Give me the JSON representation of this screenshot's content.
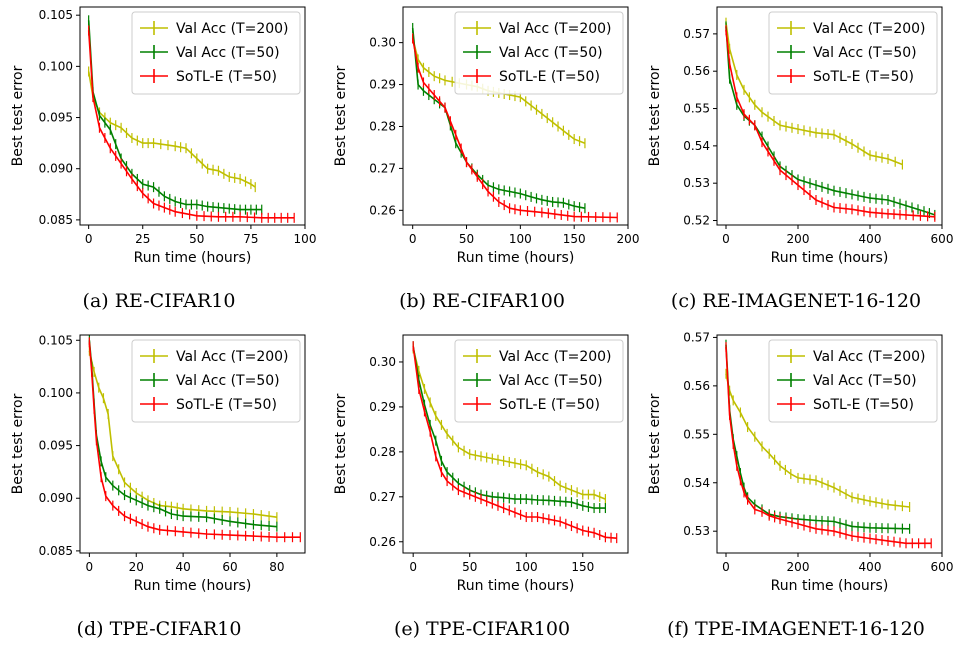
{
  "series_names": [
    "Val Acc (T=200)",
    "Val Acc (T=50)",
    "SoTL-E (T=50)"
  ],
  "series_colors": [
    "#bfbf00",
    "#008000",
    "#ff0000"
  ],
  "chart_data": [
    {
      "type": "line",
      "caption": "(a) RE-CIFAR10",
      "xlabel": "Run time (hours)",
      "ylabel": "Best test error",
      "xlim": [
        -4,
        100
      ],
      "ylim": [
        0.0845,
        0.1058
      ],
      "xticks": [
        0,
        25,
        50,
        75,
        100
      ],
      "yticks": [
        0.085,
        0.09,
        0.095,
        0.1,
        0.105
      ],
      "ytick_labels": [
        "0.085",
        "0.090",
        "0.095",
        "0.100",
        "0.105"
      ],
      "legend": "top-right",
      "series": [
        {
          "name": "Val Acc (T=200)",
          "x": [
            0,
            2,
            5,
            10,
            15,
            20,
            25,
            30,
            40,
            45,
            50,
            55,
            60,
            65,
            70,
            75,
            77
          ],
          "y": [
            0.0995,
            0.097,
            0.0955,
            0.0945,
            0.094,
            0.093,
            0.0925,
            0.0925,
            0.0922,
            0.092,
            0.091,
            0.09,
            0.0898,
            0.0892,
            0.089,
            0.0885,
            0.0882
          ]
        },
        {
          "name": "Val Acc (T=50)",
          "x": [
            0,
            2,
            5,
            10,
            15,
            20,
            25,
            30,
            35,
            40,
            45,
            50,
            55,
            60,
            65,
            70,
            75,
            80
          ],
          "y": [
            0.1045,
            0.0975,
            0.0952,
            0.0938,
            0.091,
            0.0895,
            0.0885,
            0.0882,
            0.0873,
            0.0868,
            0.0865,
            0.0865,
            0.0863,
            0.0862,
            0.0861,
            0.086,
            0.086,
            0.086
          ]
        },
        {
          "name": "SoTL-E (T=50)",
          "x": [
            0,
            2,
            5,
            10,
            15,
            20,
            25,
            30,
            35,
            40,
            50,
            60,
            70,
            80,
            95
          ],
          "y": [
            0.1035,
            0.097,
            0.094,
            0.092,
            0.0905,
            0.089,
            0.0876,
            0.0866,
            0.0862,
            0.0858,
            0.0854,
            0.0853,
            0.0853,
            0.0852,
            0.0852
          ]
        }
      ]
    },
    {
      "type": "line",
      "caption": "(b) RE-CIFAR100",
      "xlabel": "Run time (hours)",
      "ylabel": "Best test error",
      "xlim": [
        -9,
        200
      ],
      "ylim": [
        0.2565,
        0.3085
      ],
      "xticks": [
        0,
        50,
        100,
        150,
        200
      ],
      "yticks": [
        0.26,
        0.27,
        0.28,
        0.29,
        0.3
      ],
      "ytick_labels": [
        "0.26",
        "0.27",
        "0.28",
        "0.29",
        "0.30"
      ],
      "legend": "top-right",
      "series": [
        {
          "name": "Val Acc (T=200)",
          "x": [
            0,
            5,
            10,
            20,
            30,
            50,
            60,
            70,
            80,
            90,
            100,
            110,
            120,
            130,
            140,
            150,
            160
          ],
          "y": [
            0.301,
            0.296,
            0.294,
            0.292,
            0.291,
            0.29,
            0.2895,
            0.2885,
            0.288,
            0.2875,
            0.287,
            0.285,
            0.283,
            0.281,
            0.279,
            0.277,
            0.276
          ]
        },
        {
          "name": "Val Acc (T=50)",
          "x": [
            0,
            5,
            10,
            20,
            30,
            40,
            50,
            60,
            70,
            80,
            90,
            100,
            110,
            120,
            130,
            140,
            150,
            160
          ],
          "y": [
            0.3035,
            0.29,
            0.2885,
            0.2865,
            0.2845,
            0.276,
            0.2715,
            0.2685,
            0.266,
            0.265,
            0.2645,
            0.264,
            0.2632,
            0.2625,
            0.262,
            0.2618,
            0.261,
            0.2605
          ]
        },
        {
          "name": "SoTL-E (T=50)",
          "x": [
            0,
            5,
            10,
            20,
            30,
            40,
            50,
            60,
            70,
            80,
            90,
            100,
            120,
            150,
            190
          ],
          "y": [
            0.301,
            0.294,
            0.2905,
            0.2875,
            0.2845,
            0.278,
            0.2715,
            0.268,
            0.2645,
            0.262,
            0.2605,
            0.26,
            0.2595,
            0.2585,
            0.2583
          ]
        }
      ]
    },
    {
      "type": "line",
      "caption": "(c) RE-IMAGENET-16-120",
      "xlabel": "Run time (hours)",
      "ylabel": "Best test error",
      "xlim": [
        -25,
        600
      ],
      "ylim": [
        0.5188,
        0.5772
      ],
      "xticks": [
        0,
        200,
        400,
        600
      ],
      "yticks": [
        0.52,
        0.53,
        0.54,
        0.55,
        0.56,
        0.57
      ],
      "ytick_labels": [
        "0.52",
        "0.53",
        "0.54",
        "0.55",
        "0.56",
        "0.57"
      ],
      "legend": "top-right",
      "series": [
        {
          "name": "Val Acc (T=200)",
          "x": [
            0,
            10,
            30,
            50,
            80,
            100,
            150,
            200,
            250,
            300,
            350,
            400,
            450,
            490
          ],
          "y": [
            0.573,
            0.566,
            0.559,
            0.555,
            0.551,
            0.549,
            0.5455,
            0.5445,
            0.5435,
            0.543,
            0.5405,
            0.5375,
            0.5365,
            0.535
          ]
        },
        {
          "name": "Val Acc (T=50)",
          "x": [
            0,
            10,
            30,
            50,
            80,
            100,
            150,
            200,
            250,
            300,
            350,
            400,
            450,
            500,
            550,
            580
          ],
          "y": [
            0.572,
            0.558,
            0.551,
            0.548,
            0.5455,
            0.5425,
            0.5345,
            0.531,
            0.5295,
            0.528,
            0.527,
            0.526,
            0.5255,
            0.524,
            0.5225,
            0.5215
          ]
        },
        {
          "name": "SoTL-E (T=50)",
          "x": [
            0,
            10,
            30,
            50,
            80,
            100,
            150,
            200,
            250,
            300,
            350,
            400,
            450,
            500,
            580
          ],
          "y": [
            0.571,
            0.562,
            0.553,
            0.5485,
            0.5455,
            0.541,
            0.5335,
            0.5295,
            0.5255,
            0.5235,
            0.523,
            0.5222,
            0.5218,
            0.5215,
            0.521
          ]
        }
      ]
    },
    {
      "type": "line",
      "caption": "(d) TPE-CIFAR10",
      "xlabel": "Run time (hours)",
      "ylabel": "Best test error",
      "xlim": [
        -4,
        92
      ],
      "ylim": [
        0.0848,
        0.1055
      ],
      "xticks": [
        0,
        20,
        40,
        60,
        80
      ],
      "yticks": [
        0.085,
        0.09,
        0.095,
        0.1,
        0.105
      ],
      "ytick_labels": [
        "0.085",
        "0.090",
        "0.095",
        "0.100",
        "0.105"
      ],
      "legend": "top-right",
      "series": [
        {
          "name": "Val Acc (T=200)",
          "x": [
            0,
            2,
            4,
            6,
            8,
            10,
            15,
            20,
            25,
            30,
            35,
            40,
            50,
            60,
            70,
            80
          ],
          "y": [
            0.104,
            0.102,
            0.1005,
            0.0995,
            0.098,
            0.094,
            0.0915,
            0.0905,
            0.0898,
            0.0893,
            0.0892,
            0.089,
            0.0888,
            0.0887,
            0.0885,
            0.0882
          ]
        },
        {
          "name": "Val Acc (T=50)",
          "x": [
            0,
            1,
            2,
            3,
            5,
            7,
            10,
            15,
            20,
            25,
            30,
            35,
            40,
            50,
            60,
            70,
            80
          ],
          "y": [
            0.105,
            0.1025,
            0.099,
            0.096,
            0.0935,
            0.092,
            0.0912,
            0.0903,
            0.0898,
            0.0893,
            0.089,
            0.0885,
            0.0883,
            0.0882,
            0.0878,
            0.0875,
            0.0873
          ]
        },
        {
          "name": "SoTL-E (T=50)",
          "x": [
            0,
            1,
            2,
            3,
            5,
            7,
            10,
            15,
            20,
            25,
            30,
            40,
            50,
            60,
            70,
            80,
            90
          ],
          "y": [
            0.1048,
            0.102,
            0.0985,
            0.0955,
            0.092,
            0.0902,
            0.0893,
            0.0883,
            0.0878,
            0.0873,
            0.087,
            0.0868,
            0.0866,
            0.0865,
            0.0864,
            0.0863,
            0.0863
          ]
        }
      ]
    },
    {
      "type": "line",
      "caption": "(e) TPE-CIFAR100",
      "xlabel": "Run time (hours)",
      "ylabel": "Best test error",
      "xlim": [
        -9,
        190
      ],
      "ylim": [
        0.2575,
        0.306
      ],
      "xticks": [
        0,
        50,
        100,
        150
      ],
      "yticks": [
        0.26,
        0.27,
        0.28,
        0.29,
        0.3
      ],
      "ytick_labels": [
        "0.26",
        "0.27",
        "0.28",
        "0.29",
        "0.30"
      ],
      "legend": "top-right",
      "series": [
        {
          "name": "Val Acc (T=200)",
          "x": [
            0,
            5,
            10,
            15,
            20,
            25,
            30,
            40,
            50,
            60,
            70,
            80,
            90,
            100,
            110,
            120,
            130,
            140,
            150,
            160,
            170
          ],
          "y": [
            0.303,
            0.298,
            0.294,
            0.291,
            0.288,
            0.286,
            0.284,
            0.281,
            0.2795,
            0.279,
            0.2785,
            0.278,
            0.2775,
            0.277,
            0.2755,
            0.2745,
            0.2725,
            0.2715,
            0.2705,
            0.2705,
            0.2695
          ]
        },
        {
          "name": "Val Acc (T=50)",
          "x": [
            0,
            5,
            10,
            15,
            20,
            25,
            30,
            40,
            50,
            60,
            70,
            80,
            90,
            100,
            110,
            120,
            130,
            140,
            150,
            160,
            170
          ],
          "y": [
            0.3035,
            0.296,
            0.2905,
            0.286,
            0.2825,
            0.278,
            0.2755,
            0.273,
            0.2715,
            0.2705,
            0.27,
            0.2698,
            0.2695,
            0.2695,
            0.2693,
            0.2692,
            0.269,
            0.2688,
            0.268,
            0.2675,
            0.2675
          ]
        },
        {
          "name": "SoTL-E (T=50)",
          "x": [
            0,
            5,
            10,
            15,
            20,
            25,
            30,
            40,
            50,
            60,
            70,
            80,
            90,
            100,
            110,
            120,
            130,
            140,
            150,
            160,
            170,
            180
          ],
          "y": [
            0.3035,
            0.294,
            0.289,
            0.2845,
            0.279,
            0.2755,
            0.2735,
            0.2715,
            0.2705,
            0.2695,
            0.2685,
            0.2675,
            0.2665,
            0.2655,
            0.2655,
            0.265,
            0.2645,
            0.2635,
            0.2625,
            0.262,
            0.261,
            0.2608
          ]
        }
      ]
    },
    {
      "type": "line",
      "caption": "(f) TPE-IMAGENET-16-120",
      "xlabel": "Run time (hours)",
      "ylabel": "Best test error",
      "xlim": [
        -25,
        600
      ],
      "ylim": [
        0.5255,
        0.5705
      ],
      "xticks": [
        0,
        200,
        400,
        600
      ],
      "yticks": [
        0.53,
        0.54,
        0.55,
        0.56,
        0.57
      ],
      "ytick_labels": [
        "0.53",
        "0.54",
        "0.55",
        "0.56",
        "0.57"
      ],
      "legend": "top-right",
      "series": [
        {
          "name": "Val Acc (T=200)",
          "x": [
            0,
            10,
            20,
            40,
            60,
            80,
            100,
            120,
            150,
            180,
            200,
            250,
            300,
            350,
            400,
            450,
            510
          ],
          "y": [
            0.5625,
            0.559,
            0.557,
            0.5545,
            0.5515,
            0.5495,
            0.5475,
            0.546,
            0.5435,
            0.5418,
            0.541,
            0.5405,
            0.539,
            0.537,
            0.5362,
            0.5355,
            0.535
          ]
        },
        {
          "name": "Val Acc (T=50)",
          "x": [
            0,
            10,
            20,
            30,
            40,
            50,
            60,
            80,
            100,
            120,
            150,
            200,
            250,
            300,
            350,
            400,
            450,
            510
          ],
          "y": [
            0.5685,
            0.555,
            0.549,
            0.5455,
            0.542,
            0.539,
            0.537,
            0.5355,
            0.5345,
            0.5335,
            0.533,
            0.5325,
            0.5322,
            0.532,
            0.531,
            0.5307,
            0.5306,
            0.5305
          ]
        },
        {
          "name": "SoTL-E (T=50)",
          "x": [
            0,
            10,
            20,
            30,
            40,
            50,
            60,
            80,
            100,
            120,
            150,
            200,
            250,
            300,
            350,
            400,
            450,
            500,
            570
          ],
          "y": [
            0.568,
            0.554,
            0.548,
            0.5435,
            0.5405,
            0.538,
            0.5365,
            0.5345,
            0.534,
            0.5332,
            0.5325,
            0.5315,
            0.5305,
            0.53,
            0.529,
            0.5285,
            0.528,
            0.5275,
            0.5275
          ]
        }
      ]
    }
  ]
}
